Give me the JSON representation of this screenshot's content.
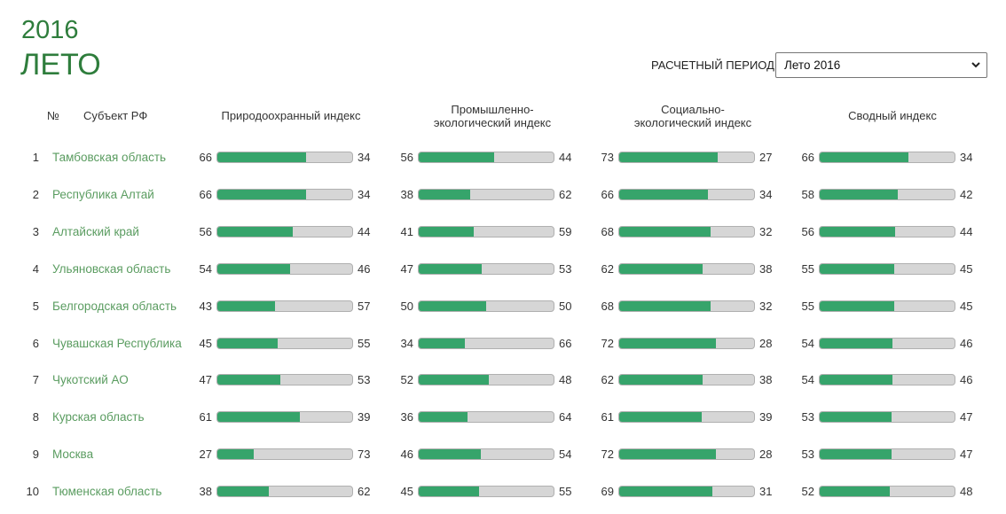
{
  "header": {
    "year": "2016",
    "season": "ЛЕТО"
  },
  "period": {
    "label": "РАСЧЕТНЫЙ ПЕРИОД",
    "selected": "Лето 2016"
  },
  "columns": {
    "num": "№",
    "region": "Субъект РФ",
    "indices": [
      [
        "Природоохранный индекс"
      ],
      [
        "Промышленно-",
        "экологический индекс"
      ],
      [
        "Социально-",
        "экологический индекс"
      ],
      [
        "Сводный индекс"
      ]
    ]
  },
  "colors": {
    "title": "#2e7d3c",
    "link": "#5a9c60",
    "bar_fill": "#36a46b",
    "bar_track": "#d6d6d6"
  },
  "rows": [
    {
      "rank": "1",
      "region": "Тамбовская область",
      "scores": [
        [
          66,
          34
        ],
        [
          56,
          44
        ],
        [
          73,
          27
        ],
        [
          66,
          34
        ]
      ]
    },
    {
      "rank": "2",
      "region": "Республика Алтай",
      "scores": [
        [
          66,
          34
        ],
        [
          38,
          62
        ],
        [
          66,
          34
        ],
        [
          58,
          42
        ]
      ]
    },
    {
      "rank": "3",
      "region": "Алтайский край",
      "scores": [
        [
          56,
          44
        ],
        [
          41,
          59
        ],
        [
          68,
          32
        ],
        [
          56,
          44
        ]
      ]
    },
    {
      "rank": "4",
      "region": "Ульяновская область",
      "scores": [
        [
          54,
          46
        ],
        [
          47,
          53
        ],
        [
          62,
          38
        ],
        [
          55,
          45
        ]
      ]
    },
    {
      "rank": "5",
      "region": "Белгородская область",
      "scores": [
        [
          43,
          57
        ],
        [
          50,
          50
        ],
        [
          68,
          32
        ],
        [
          55,
          45
        ]
      ]
    },
    {
      "rank": "6",
      "region": "Чувашская Республика",
      "scores": [
        [
          45,
          55
        ],
        [
          34,
          66
        ],
        [
          72,
          28
        ],
        [
          54,
          46
        ]
      ]
    },
    {
      "rank": "7",
      "region": "Чукотский АО",
      "scores": [
        [
          47,
          53
        ],
        [
          52,
          48
        ],
        [
          62,
          38
        ],
        [
          54,
          46
        ]
      ]
    },
    {
      "rank": "8",
      "region": "Курская область",
      "scores": [
        [
          61,
          39
        ],
        [
          36,
          64
        ],
        [
          61,
          39
        ],
        [
          53,
          47
        ]
      ]
    },
    {
      "rank": "9",
      "region": "Москва",
      "scores": [
        [
          27,
          73
        ],
        [
          46,
          54
        ],
        [
          72,
          28
        ],
        [
          53,
          47
        ]
      ]
    },
    {
      "rank": "10",
      "region": "Тюменская область",
      "scores": [
        [
          38,
          62
        ],
        [
          45,
          55
        ],
        [
          69,
          31
        ],
        [
          52,
          48
        ]
      ]
    }
  ]
}
